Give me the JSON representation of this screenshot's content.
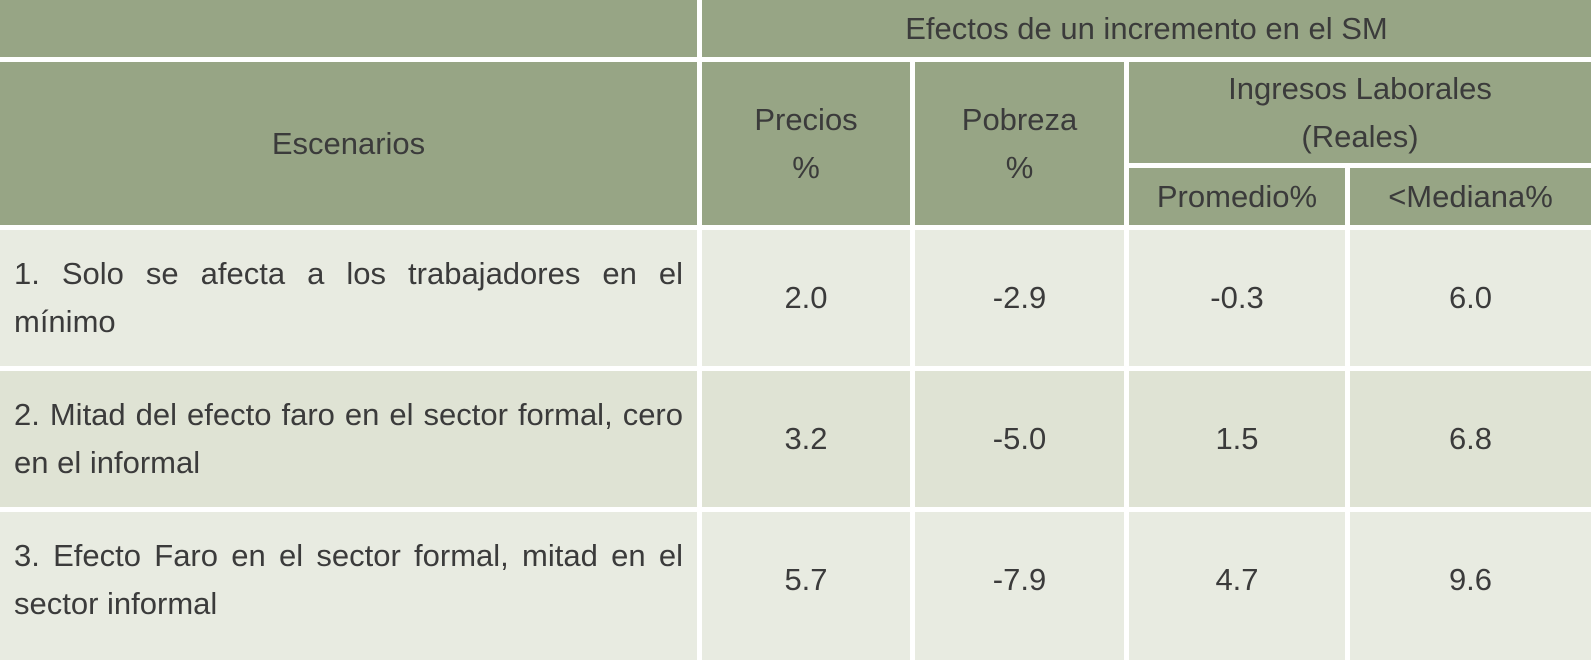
{
  "table": {
    "header": {
      "group": "Efectos de un incremento en el SM",
      "scenarios": "Escenarios",
      "prices": "Precios\n%",
      "poverty": "Pobreza\n%",
      "income": "Ingresos Laborales\n(Reales)",
      "mean": "Promedio%",
      "median": "<Mediana%"
    },
    "rows": [
      [
        "1. Solo se afecta a los trabajadores en el mínimo",
        "2.0",
        "-2.9",
        "-0.3",
        "6.0"
      ],
      [
        "2. Mitad del efecto faro en el sector formal, cero en el informal",
        "3.2",
        "-5.0",
        "1.5",
        "6.8"
      ],
      [
        "3. Efecto Faro en el sector formal, mitad en el sector informal",
        "5.7",
        "-7.9",
        "4.7",
        "9.6"
      ]
    ]
  }
}
